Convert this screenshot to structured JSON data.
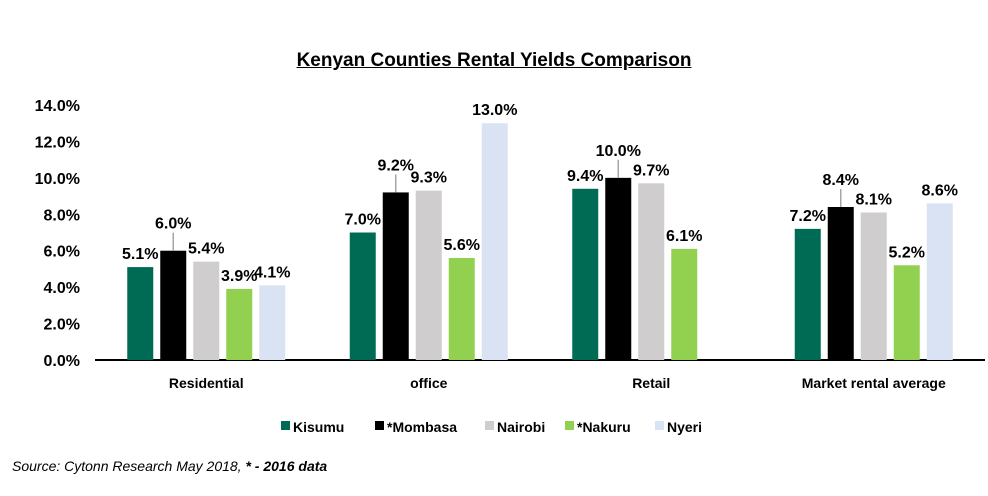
{
  "chart_data": {
    "type": "bar",
    "title": "Kenyan Counties  Rental Yields Comparison",
    "categories": [
      "Residential",
      "office",
      "Retail",
      "Market rental average"
    ],
    "series": [
      {
        "name": "Kisumu",
        "color": "#006B54",
        "values": [
          5.1,
          7.0,
          9.4,
          7.2
        ]
      },
      {
        "name": "*Mombasa",
        "color": "#000000",
        "values": [
          6.0,
          9.2,
          10.0,
          8.4
        ]
      },
      {
        "name": "Nairobi",
        "color": "#CFCDCD",
        "values": [
          5.4,
          9.3,
          9.7,
          8.1
        ]
      },
      {
        "name": "*Nakuru",
        "color": "#92D050",
        "values": [
          3.9,
          5.6,
          6.1,
          5.2
        ]
      },
      {
        "name": "Nyeri",
        "color": "#DAE3F3",
        "values": [
          4.1,
          13.0,
          null,
          8.6
        ]
      }
    ],
    "ylim": [
      0,
      14
    ],
    "yticks": [
      "0.0%",
      "2.0%",
      "4.0%",
      "6.0%",
      "8.0%",
      "10.0%",
      "12.0%",
      "14.0%"
    ],
    "xlabel": "",
    "ylabel": "",
    "grid": false,
    "legend": "bottom"
  },
  "source": {
    "text": "Source: Cytonn Research May 2018, ",
    "bold": "* - 2016 data"
  }
}
